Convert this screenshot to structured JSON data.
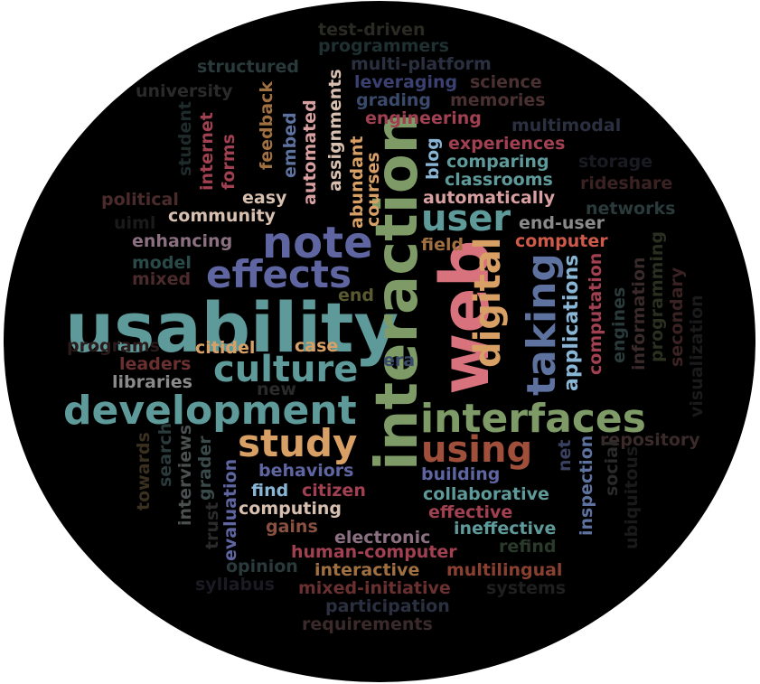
{
  "cloud": {
    "background": "#000000",
    "words": [
      {
        "text": "usability",
        "color": "#5f9a9a"
      },
      {
        "text": "interaction",
        "color": "#7e9a66"
      },
      {
        "text": "web",
        "color": "#d8737e"
      },
      {
        "text": "development",
        "color": "#5f9a9a"
      },
      {
        "text": "interfaces",
        "color": "#7e9a66"
      },
      {
        "text": "note",
        "color": "#5e65a0"
      },
      {
        "text": "effects",
        "color": "#5e65a0"
      },
      {
        "text": "culture",
        "color": "#5f9a9a"
      },
      {
        "text": "taking",
        "color": "#5e72a0"
      },
      {
        "text": "digital",
        "color": "#d9a066"
      },
      {
        "text": "user",
        "color": "#5f9a9a"
      },
      {
        "text": "study",
        "color": "#d9a066"
      },
      {
        "text": "using",
        "color": "#a0503a"
      },
      {
        "text": "applications",
        "color": "#8ab6d6"
      },
      {
        "text": "test-driven",
        "color": "#2a2a22"
      },
      {
        "text": "programmers",
        "color": "#1f3030"
      },
      {
        "text": "structured",
        "color": "#2a3a3a"
      },
      {
        "text": "multi-platform",
        "color": "#2a3040"
      },
      {
        "text": "science",
        "color": "#4a3030"
      },
      {
        "text": "leveraging",
        "color": "#3a4070"
      },
      {
        "text": "grading",
        "color": "#3a4a6a"
      },
      {
        "text": "memories",
        "color": "#4a3030"
      },
      {
        "text": "engineering",
        "color": "#a04050"
      },
      {
        "text": "multimodal",
        "color": "#2a3040"
      },
      {
        "text": "experiences",
        "color": "#a04050"
      },
      {
        "text": "blog",
        "color": "#8ab6d6"
      },
      {
        "text": "comparing",
        "color": "#5f9a9a"
      },
      {
        "text": "storage",
        "color": "#1a1a22"
      },
      {
        "text": "classrooms",
        "color": "#5f9a9a"
      },
      {
        "text": "rideshare",
        "color": "#3a2222"
      },
      {
        "text": "automatically",
        "color": "#d8a0a0"
      },
      {
        "text": "networks",
        "color": "#2a3a3a"
      },
      {
        "text": "end-user",
        "color": "#8a8a8a"
      },
      {
        "text": "computer",
        "color": "#d05a4a"
      },
      {
        "text": "field",
        "color": "#a07040"
      },
      {
        "text": "university",
        "color": "#2a2a2a"
      },
      {
        "text": "student",
        "color": "#1f2a2a"
      },
      {
        "text": "internet",
        "color": "#a04050"
      },
      {
        "text": "forms",
        "color": "#a04050"
      },
      {
        "text": "feedback",
        "color": "#a07040"
      },
      {
        "text": "embed",
        "color": "#5e72a0"
      },
      {
        "text": "automated",
        "color": "#d8a0a0"
      },
      {
        "text": "assignments",
        "color": "#d8c0b0"
      },
      {
        "text": "abundant",
        "color": "#d9a066"
      },
      {
        "text": "courses",
        "color": "#d9a066"
      },
      {
        "text": "easy",
        "color": "#d8c0b0"
      },
      {
        "text": "political",
        "color": "#4a2a2a"
      },
      {
        "text": "uiml",
        "color": "#1a1a1a"
      },
      {
        "text": "community",
        "color": "#d8c0b0"
      },
      {
        "text": "enhancing",
        "color": "#8a7080"
      },
      {
        "text": "model",
        "color": "#2a4a4a"
      },
      {
        "text": "mixed",
        "color": "#4a2a2a"
      },
      {
        "text": "end",
        "color": "#5a5a30"
      },
      {
        "text": "programs",
        "color": "#2a1a1a"
      },
      {
        "text": "citidel",
        "color": "#d9a066"
      },
      {
        "text": "case",
        "color": "#d9a066"
      },
      {
        "text": "era",
        "color": "#3a4a6a"
      },
      {
        "text": "leaders",
        "color": "#6a3030"
      },
      {
        "text": "libraries",
        "color": "#8a8a8a"
      },
      {
        "text": "new",
        "color": "#2a2a2a"
      },
      {
        "text": "computation",
        "color": "#a04050"
      },
      {
        "text": "engines",
        "color": "#2a3a3a"
      },
      {
        "text": "information",
        "color": "#3a2a2a"
      },
      {
        "text": "programming",
        "color": "#2a3020"
      },
      {
        "text": "secondary",
        "color": "#3a2222"
      },
      {
        "text": "visualization",
        "color": "#1a1a1a"
      },
      {
        "text": "repository",
        "color": "#3a2a2a"
      },
      {
        "text": "towards",
        "color": "#3a3020"
      },
      {
        "text": "search",
        "color": "#2a3a3a"
      },
      {
        "text": "interviews",
        "color": "#4a5050"
      },
      {
        "text": "grader",
        "color": "#3a4a4a"
      },
      {
        "text": "evaluation",
        "color": "#5e65a0"
      },
      {
        "text": "trust",
        "color": "#2a2a2a"
      },
      {
        "text": "behaviors",
        "color": "#5e65a0"
      },
      {
        "text": "find",
        "color": "#8ab6d6"
      },
      {
        "text": "citizen",
        "color": "#a04050"
      },
      {
        "text": "building",
        "color": "#5e65a0"
      },
      {
        "text": "collaborative",
        "color": "#5f9a9a"
      },
      {
        "text": "computing",
        "color": "#d8c0b0"
      },
      {
        "text": "effective",
        "color": "#a04050"
      },
      {
        "text": "gains",
        "color": "#8a5040"
      },
      {
        "text": "electronic",
        "color": "#8a7080"
      },
      {
        "text": "ineffective",
        "color": "#5f9a9a"
      },
      {
        "text": "inspection",
        "color": "#5e72a0"
      },
      {
        "text": "net",
        "color": "#3a4060"
      },
      {
        "text": "social",
        "color": "#2a2a2a"
      },
      {
        "text": "ubiquitous",
        "color": "#1a1a1a"
      },
      {
        "text": "human-computer",
        "color": "#a04050"
      },
      {
        "text": "refind",
        "color": "#2a3a2a"
      },
      {
        "text": "opinion",
        "color": "#2a3a3a"
      },
      {
        "text": "interactive",
        "color": "#a07040"
      },
      {
        "text": "multilingual",
        "color": "#8a4030"
      },
      {
        "text": "syllabus",
        "color": "#1a1a22"
      },
      {
        "text": "mixed-initiative",
        "color": "#6a3030"
      },
      {
        "text": "systems",
        "color": "#1f1f1f"
      },
      {
        "text": "participation",
        "color": "#2a3040"
      },
      {
        "text": "requirements",
        "color": "#3a2a2a"
      }
    ]
  }
}
